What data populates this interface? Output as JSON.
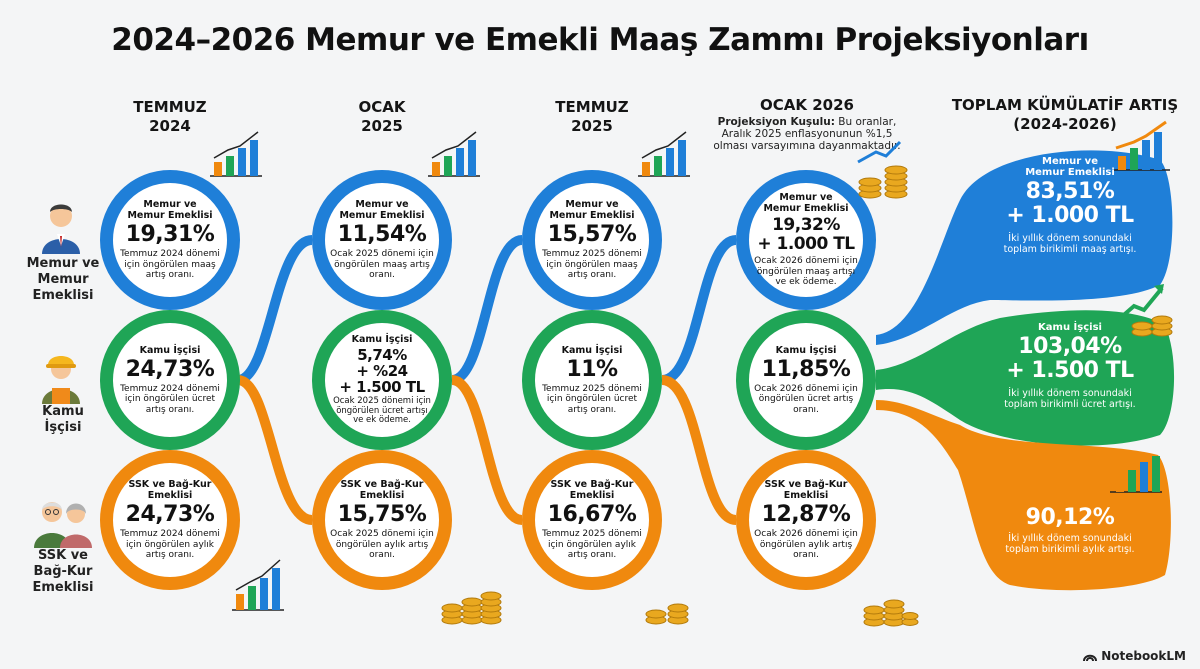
{
  "title": "2024–2026 Memur ve Emekli Maaş Zammı Projeksiyonları",
  "columns": [
    {
      "label": "TEMMUZ\n2024"
    },
    {
      "label": "OCAK\n2025"
    },
    {
      "label": "TEMMUZ\n2025"
    },
    {
      "label": "OCAK 2026"
    },
    {
      "label": "TOPLAM KÜMÜLATİF ARTIŞ\n(2024-2026)"
    }
  ],
  "projection_note": {
    "bold": "Projeksiyon Kuşulu:",
    "text": " Bu oranlar, Aralık 2025 enflasyonunun %1,5 olması varsayımına dayanmaktadır."
  },
  "row_labels": [
    "Memur ve\nMemur\nEmeklisi",
    "Kamu\nİşçisi",
    "SSK ve\nBağ-Kur\nEmeklisi"
  ],
  "circles": {
    "memur": [
      {
        "cat": "Memur ve\nMemur Emeklisi",
        "val": "19,31%",
        "desc": "Temmuz 2024 dönemi için öngörülen maaş artış oranı."
      },
      {
        "cat": "Memur ve\nMemur Emeklisi",
        "val": "11,54%",
        "desc": "Ocak 2025 dönemi için öngörülen maaş artış oranı."
      },
      {
        "cat": "Memur ve\nMemur Emeklisi",
        "val": "15,57%",
        "desc": "Temmuz 2025 dönemi için öngörülen maaş artış oranı."
      },
      {
        "cat": "Memur ve\nMemur Emeklisi",
        "val": "19,32%\n+ 1.000 TL",
        "desc": "Ocak 2026 dönemi için öngörülen maaş artışı ve ek ödeme."
      }
    ],
    "kamu": [
      {
        "cat": "Kamu İşçisi",
        "val": "24,73%",
        "desc": "Temmuz 2024 dönemi için öngörülen ücret artış oranı."
      },
      {
        "cat": "Kamu İşçisi",
        "val": "5,74%\n+ %24\n+ 1.500 TL",
        "desc": "Ocak 2025 dönemi için öngörülen ücret artışı ve ek ödeme."
      },
      {
        "cat": "Kamu İşçisi",
        "val": "11%",
        "desc": "Temmuz 2025 dönemi için öngörülen ücret artış oranı."
      },
      {
        "cat": "Kamu İşçisi",
        "val": "11,85%",
        "desc": "Ocak 2026 dönemi için öngörülen ücret artış oranı."
      }
    ],
    "ssk": [
      {
        "cat": "SSK ve Bağ-Kur\nEmeklisi",
        "val": "24,73%",
        "desc": "Temmuz 2024 dönemi için öngörülen aylık artış oranı."
      },
      {
        "cat": "SSK ve Bağ-Kur\nEmeklisi",
        "val": "15,75%",
        "desc": "Ocak 2025 dönemi için öngörülen aylık artış oranı."
      },
      {
        "cat": "SSK ve Bağ-Kur\nEmeklisi",
        "val": "16,67%",
        "desc": "Temmuz 2025 dönemi için öngörülen aylık artış oranı."
      },
      {
        "cat": "SSK ve Bağ-Kur\nEmeklisi",
        "val": "12,87%",
        "desc": "Ocak 2026 dönemi için öngörülen aylık artış oranı."
      }
    ]
  },
  "cumulative": {
    "memur": {
      "cat": "Memur ve\nMemur Emeklisi",
      "val": "83,51%\n+ 1.000 TL",
      "desc": "İki yıllık dönem sonundaki\ntoplam birikimli maaş artışı."
    },
    "kamu": {
      "cat": "Kamu İşçisi",
      "val": "103,04%\n+ 1.500 TL",
      "desc": "İki yıllık dönem sonundaki\ntoplam birikimli ücret artışı."
    },
    "ssk": {
      "val": "90,12%",
      "desc": "İki yıllık dönem sonundaki\ntoplam birikimli aylık artışı."
    }
  },
  "colors": {
    "blue": "#1f7fd8",
    "green": "#1fa556",
    "orange": "#f0890e"
  },
  "icons": [
    "memur-person-icon",
    "worker-person-icon",
    "elderly-couple-icon",
    "rising-bar-chart-icon",
    "coin-stack-icon",
    "notebooklm-logo-icon"
  ],
  "logo": "NotebookLM"
}
